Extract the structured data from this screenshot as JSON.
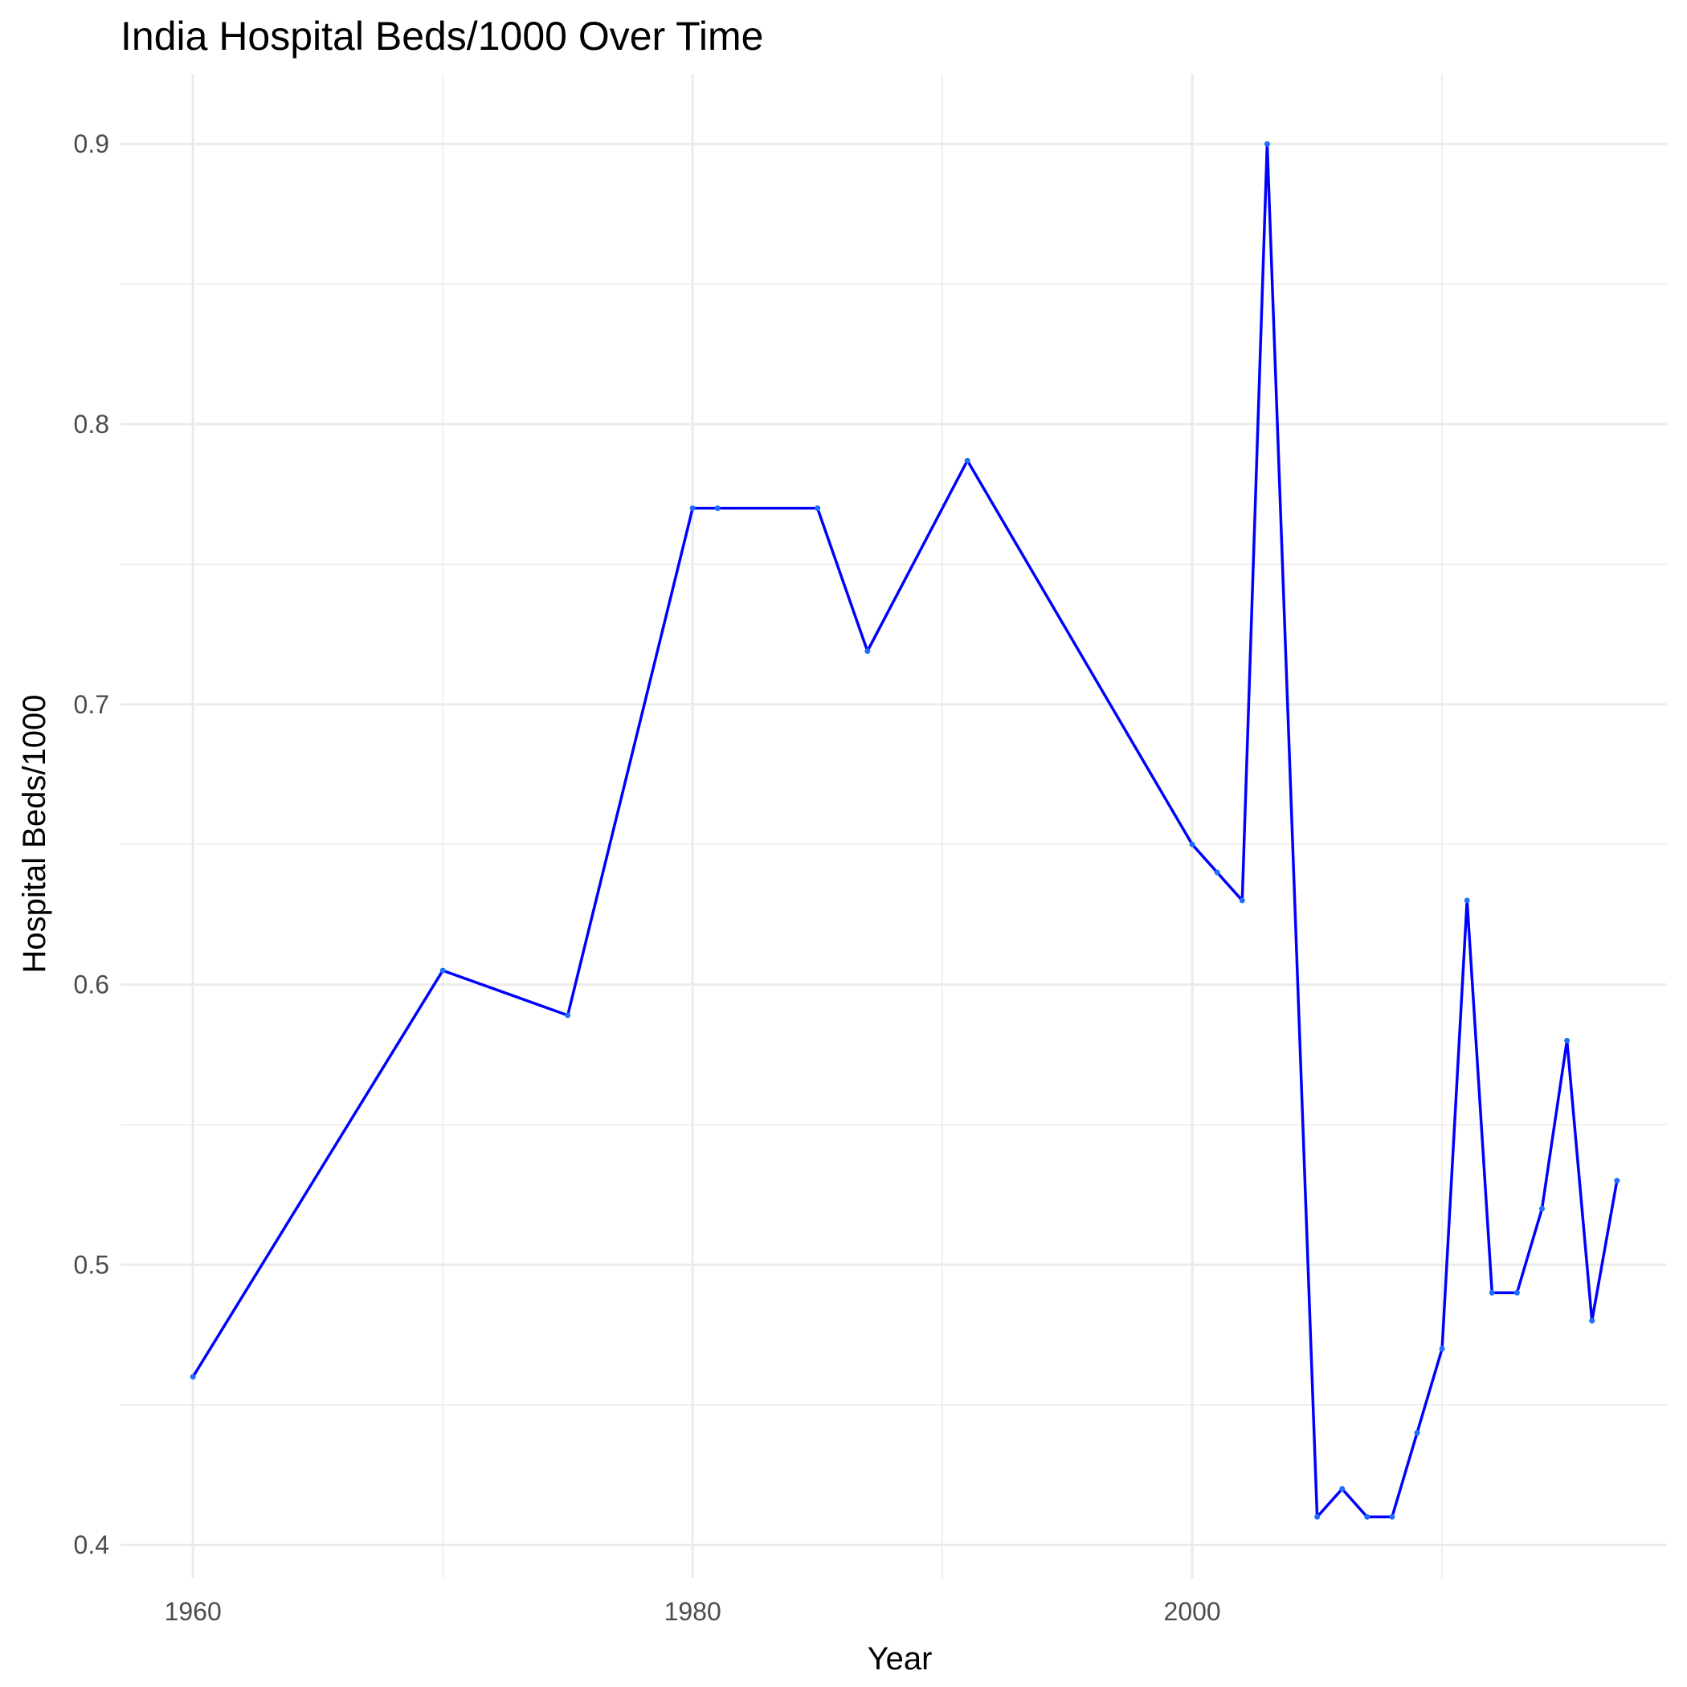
{
  "chart_data": {
    "type": "line",
    "title": "India Hospital Beds/1000 Over Time",
    "xlabel": "Year",
    "ylabel": "Hospital Beds/1000",
    "xlim": [
      1957.1,
      2019.0
    ],
    "ylim": [
      0.388,
      0.925
    ],
    "x_ticks": [
      1960,
      1980,
      2000
    ],
    "x_tick_labels": [
      "1960",
      "1980",
      "2000"
    ],
    "x_minor_ticks": [
      1970,
      1990,
      2010
    ],
    "y_ticks": [
      0.4,
      0.5,
      0.6,
      0.7,
      0.8,
      0.9
    ],
    "y_tick_labels": [
      "0.4",
      "0.5",
      "0.6",
      "0.7",
      "0.8",
      "0.9"
    ],
    "y_minor_ticks": [
      0.45,
      0.55,
      0.65,
      0.75,
      0.85
    ],
    "grid": true,
    "color": "#0000ff",
    "series": [
      {
        "x": [
          1960,
          1970,
          1975,
          1980,
          1981,
          1985,
          1987,
          1991,
          2000,
          2001,
          2002,
          2003,
          2005,
          2006,
          2007,
          2008,
          2009,
          2010,
          2011,
          2012,
          2013,
          2014,
          2015,
          2016,
          2017
        ],
        "values": [
          0.46,
          0.605,
          0.589,
          0.77,
          0.77,
          0.77,
          0.719,
          0.787,
          0.65,
          0.64,
          0.63,
          0.9,
          0.41,
          0.42,
          0.41,
          0.41,
          0.44,
          0.47,
          0.63,
          0.49,
          0.49,
          0.52,
          0.58,
          0.48,
          0.53
        ]
      }
    ]
  }
}
